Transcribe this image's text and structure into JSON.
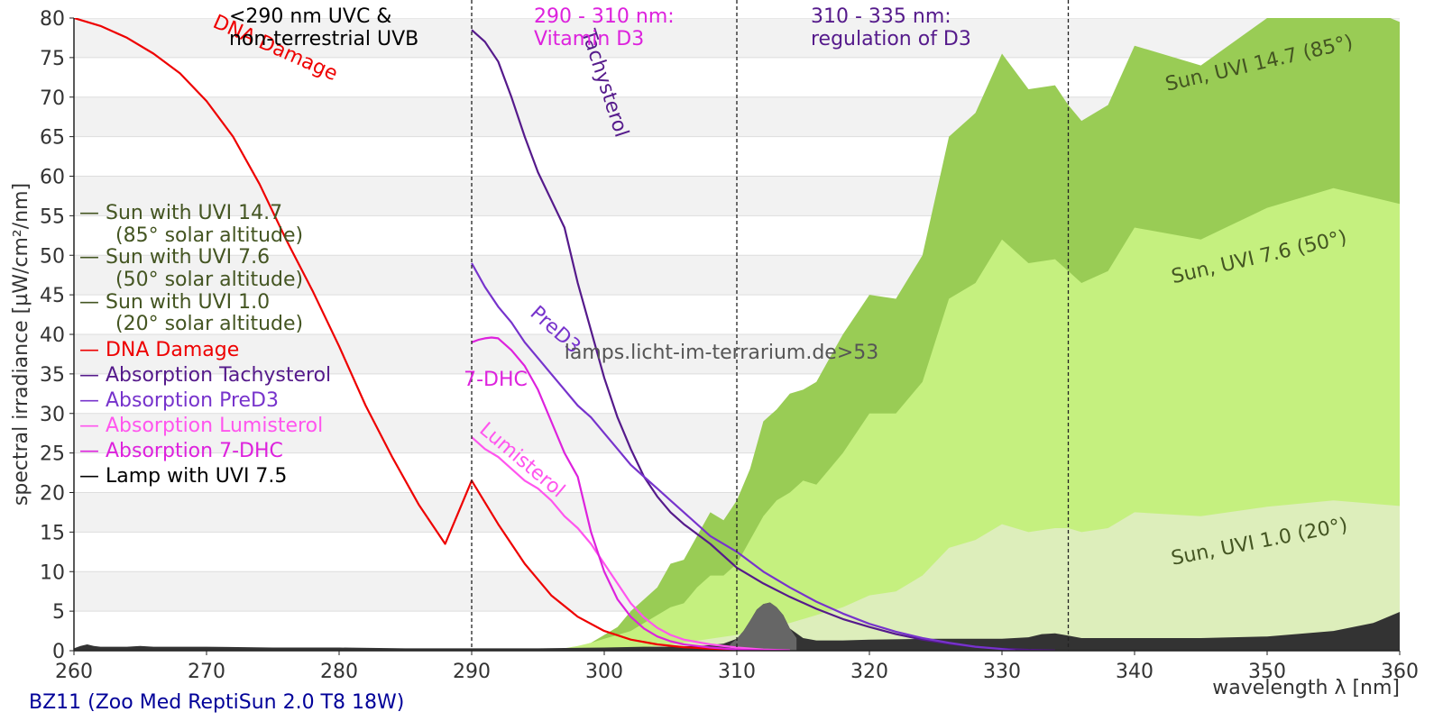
{
  "chart_data": {
    "type": "area",
    "xlabel": "wavelength λ [nm]",
    "ylabel": "spectral irradiance [µW/cm²/nm]",
    "footer": "BZ11 (Zoo Med ReptiSun 2.0 T8 18W)",
    "watermark": "lamps.licht-im-terrarium.de>53",
    "xlim": [
      260,
      360
    ],
    "ylim": [
      0,
      80
    ],
    "xticks": [
      260,
      270,
      280,
      290,
      300,
      310,
      320,
      330,
      340,
      350,
      360
    ],
    "yticks": [
      0,
      5,
      10,
      15,
      20,
      25,
      30,
      35,
      40,
      45,
      50,
      55,
      60,
      65,
      70,
      75,
      80
    ],
    "vlines": [
      290,
      310,
      335
    ],
    "grid": "horizontal bands",
    "legend_position": "left",
    "colors": {
      "sun147": "#99cc55",
      "sun76": "#c5f07f",
      "sun10": "#ddeebb",
      "lamp": "#333333",
      "lamp_peak": "#666666",
      "dna": "#ee0000",
      "tachysterol": "#551a8b",
      "pred3": "#7733cc",
      "lumisterol": "#ff55ee",
      "dhc": "#dd22dd",
      "sun_text": "#445522",
      "footer": "#000099"
    },
    "region_labels": [
      {
        "text1": "<290 nm UVC &",
        "text2": "non-terrestrial UVB",
        "color": "#000000"
      },
      {
        "text1": "290 - 310 nm:",
        "text2": "Vitamin D3",
        "color": "#dd22dd"
      },
      {
        "text1": "310 - 335 nm:",
        "text2": "regulation of D3",
        "color": "#551a8b"
      }
    ],
    "legend": [
      {
        "line1": "— Sun with UVI 14.7",
        "line2": "(85° solar altitude)",
        "color": "#445522"
      },
      {
        "line1": "— Sun with UVI 7.6",
        "line2": "(50° solar altitude)",
        "color": "#445522"
      },
      {
        "line1": "— Sun with UVI 1.0",
        "line2": "(20° solar altitude)",
        "color": "#445522"
      },
      {
        "line1": "— DNA Damage",
        "line2": "",
        "color": "#ee0000"
      },
      {
        "line1": "— Absorption Tachysterol",
        "line2": "",
        "color": "#551a8b"
      },
      {
        "line1": "— Absorption PreD3",
        "line2": "",
        "color": "#7733cc"
      },
      {
        "line1": "— Absorption Lumisterol",
        "line2": "",
        "color": "#ff55ee"
      },
      {
        "line1": "— Absorption 7-DHC",
        "line2": "",
        "color": "#dd22dd"
      },
      {
        "line1": "— Lamp with UVI 7.5",
        "line2": "",
        "color": "#000000"
      }
    ],
    "curve_labels": [
      {
        "text": "DNA Damage",
        "color": "#ee0000",
        "x": 275,
        "y": 75.5,
        "angle": 24
      },
      {
        "text": "Tachysterol",
        "color": "#551a8b",
        "x": 299.6,
        "y": 71.5,
        "angle": 72
      },
      {
        "text": "PreD3",
        "color": "#7733cc",
        "x": 296,
        "y": 40,
        "angle": 42
      },
      {
        "text": "7-DHC",
        "color": "#dd22dd",
        "x": 291.8,
        "y": 33.5,
        "angle": 0
      },
      {
        "text": "Lumisterol",
        "color": "#ff55ee",
        "x": 293.5,
        "y": 23.5,
        "angle": 40
      },
      {
        "text": "Sun, UVI 14.7 (85°)",
        "color": "#445522",
        "x": 349.5,
        "y": 73.5,
        "angle": -13
      },
      {
        "text": "Sun, UVI 7.6 (50°)",
        "color": "#445522",
        "x": 349.5,
        "y": 49,
        "angle": -13
      },
      {
        "text": "Sun, UVI 1.0 (20°)",
        "color": "#445522",
        "x": 349.5,
        "y": 13,
        "angle": -11
      }
    ],
    "series": [
      {
        "key": "sun147",
        "kind": "area",
        "x": [
          297,
          298,
          299,
          300,
          301,
          302,
          303,
          304,
          305,
          306,
          307,
          308,
          309,
          310,
          311,
          312,
          313,
          314,
          315,
          316,
          317,
          318,
          320,
          322,
          324,
          326,
          328,
          330,
          332,
          334,
          335,
          336,
          338,
          340,
          345,
          350,
          355,
          360
        ],
        "y": [
          0.2,
          0.5,
          1,
          2,
          3,
          5,
          6.5,
          8,
          11,
          11.5,
          14.5,
          17.5,
          16.5,
          19,
          23,
          29,
          30.5,
          32.5,
          33,
          34,
          37,
          40,
          45,
          44.5,
          50,
          65,
          68,
          75.5,
          71,
          71.5,
          69,
          67,
          69,
          76.5,
          74,
          80,
          83,
          79.5
        ]
      },
      {
        "key": "sun76",
        "kind": "area",
        "x": [
          296,
          297,
          298,
          299,
          300,
          301,
          302,
          303,
          304,
          305,
          306,
          307,
          308,
          309,
          310,
          311,
          312,
          313,
          314,
          315,
          316,
          317,
          318,
          320,
          322,
          324,
          326,
          328,
          330,
          332,
          334,
          335,
          336,
          338,
          340,
          345,
          350,
          355,
          360
        ],
        "y": [
          0.1,
          0.3,
          0.6,
          1,
          1.5,
          2,
          2.5,
          3.5,
          4.5,
          5.5,
          6,
          8,
          9.5,
          9.5,
          11,
          14,
          17,
          19,
          20,
          21.5,
          21,
          23,
          25,
          30,
          30,
          34,
          44.5,
          46.5,
          52,
          49,
          49.5,
          48,
          46.5,
          48,
          53.5,
          52,
          56,
          58.5,
          56.5
        ]
      },
      {
        "key": "sun10",
        "kind": "area",
        "x": [
          300,
          302,
          304,
          306,
          308,
          310,
          312,
          314,
          316,
          318,
          320,
          322,
          324,
          326,
          328,
          330,
          332,
          334,
          335,
          336,
          338,
          340,
          345,
          350,
          355,
          360
        ],
        "y": [
          0.1,
          0.3,
          0.6,
          1,
          1.5,
          2,
          2.8,
          3.5,
          4.5,
          5.5,
          7,
          7.5,
          9.5,
          13,
          14,
          16,
          15,
          15.5,
          15.5,
          15,
          15.5,
          17.5,
          17,
          18.2,
          19,
          18.3
        ]
      },
      {
        "key": "lamp",
        "kind": "area",
        "x": [
          260,
          260.5,
          261,
          261.5,
          262,
          264,
          265,
          266,
          268,
          270,
          275,
          280,
          285,
          290,
          295,
          300,
          303,
          305,
          307,
          308,
          309,
          310,
          310.5,
          311,
          311.5,
          312,
          312.5,
          313,
          313.5,
          314,
          315,
          316,
          318,
          320,
          325,
          330,
          332,
          333,
          334,
          335,
          336,
          340,
          345,
          350,
          355,
          358,
          360
        ],
        "y": [
          0.3,
          0.6,
          0.8,
          0.6,
          0.5,
          0.5,
          0.6,
          0.5,
          0.5,
          0.5,
          0.4,
          0.4,
          0.3,
          0.3,
          0.3,
          0.4,
          0.5,
          0.5,
          0.6,
          0.7,
          0.9,
          1.5,
          2.5,
          3.8,
          5.2,
          5.9,
          6.1,
          5.5,
          4.5,
          2.8,
          1.6,
          1.3,
          1.3,
          1.4,
          1.5,
          1.5,
          1.7,
          2.1,
          2.2,
          1.9,
          1.6,
          1.6,
          1.6,
          1.8,
          2.5,
          3.5,
          4.9
        ]
      },
      {
        "key": "dna",
        "kind": "line",
        "x": [
          260,
          262,
          264,
          266,
          268,
          270,
          272,
          274,
          276,
          278,
          280,
          282,
          284,
          286,
          288,
          290,
          292,
          294,
          296,
          298,
          300,
          302,
          304,
          306,
          308,
          310,
          312,
          314
        ],
        "y": [
          80,
          79,
          77.5,
          75.5,
          73,
          69.5,
          65,
          59,
          52,
          45.5,
          38.5,
          31,
          24.5,
          18.5,
          13.5,
          21.5,
          16,
          11,
          7,
          4.3,
          2.5,
          1.4,
          0.8,
          0.45,
          0.25,
          0.12,
          0.05,
          0.02
        ]
      },
      {
        "key": "tachysterol",
        "kind": "line",
        "x": [
          290,
          291,
          292,
          293,
          294,
          295,
          296,
          297,
          298,
          299,
          300,
          301,
          302,
          303,
          304,
          305,
          306,
          308,
          310,
          312,
          314,
          316,
          318,
          320,
          322,
          324,
          326,
          328,
          330,
          332,
          334
        ],
        "y": [
          78.5,
          77,
          74.5,
          70,
          65,
          60.5,
          57,
          53.5,
          46.5,
          40.5,
          34.5,
          29.5,
          25.5,
          22,
          19.5,
          17.5,
          16,
          13.5,
          10.5,
          8.5,
          6.8,
          5.3,
          4,
          3,
          2.1,
          1.4,
          0.9,
          0.5,
          0.25,
          0.1,
          0.03
        ]
      },
      {
        "key": "pred3",
        "kind": "line",
        "x": [
          290,
          291,
          292,
          293,
          294,
          295,
          296,
          297,
          298,
          299,
          300,
          301,
          302,
          303,
          304,
          305,
          306,
          308,
          310,
          312,
          314,
          316,
          318,
          320,
          322,
          324,
          326,
          328,
          330,
          331
        ],
        "y": [
          49,
          46,
          43.5,
          41.5,
          39,
          37,
          35,
          33,
          31,
          29.5,
          27.5,
          25.5,
          23.5,
          22,
          20.5,
          19,
          17.5,
          14.5,
          12.5,
          10,
          8,
          6.2,
          4.7,
          3.4,
          2.4,
          1.6,
          1,
          0.5,
          0.2,
          0
        ]
      },
      {
        "key": "lumisterol",
        "kind": "line",
        "x": [
          290,
          291,
          292,
          293,
          294,
          295,
          296,
          297,
          298,
          299,
          300,
          301,
          302,
          303,
          304,
          305,
          306,
          308,
          310,
          312,
          314
        ],
        "y": [
          27,
          25.5,
          24.5,
          23,
          21.5,
          20.5,
          19,
          17,
          15.5,
          13.5,
          11,
          8.5,
          6,
          4.2,
          2.9,
          2,
          1.4,
          0.8,
          0.4,
          0.15,
          0.05
        ]
      },
      {
        "key": "dhc",
        "kind": "line",
        "x": [
          290,
          290.5,
          291,
          291.5,
          292,
          293,
          294,
          295,
          296,
          297,
          298,
          299,
          300,
          301,
          302,
          303,
          304,
          305,
          306,
          308,
          310,
          312,
          314
        ],
        "y": [
          39,
          39.3,
          39.5,
          39.6,
          39.5,
          38,
          36,
          33,
          29,
          25,
          22,
          15,
          10,
          6.5,
          4.3,
          2.8,
          1.8,
          1.2,
          0.8,
          0.4,
          0.15,
          0.05,
          0.02
        ]
      },
      {
        "key": "lamp_peak",
        "kind": "area",
        "x": [
          309.5,
          310,
          310.5,
          311,
          311.5,
          312,
          312.5,
          313,
          313.5,
          314,
          314.5
        ],
        "y": [
          0.8,
          1.5,
          2.5,
          3.8,
          5.2,
          5.9,
          6.1,
          5.5,
          4.5,
          2.8,
          1.6
        ]
      }
    ]
  }
}
